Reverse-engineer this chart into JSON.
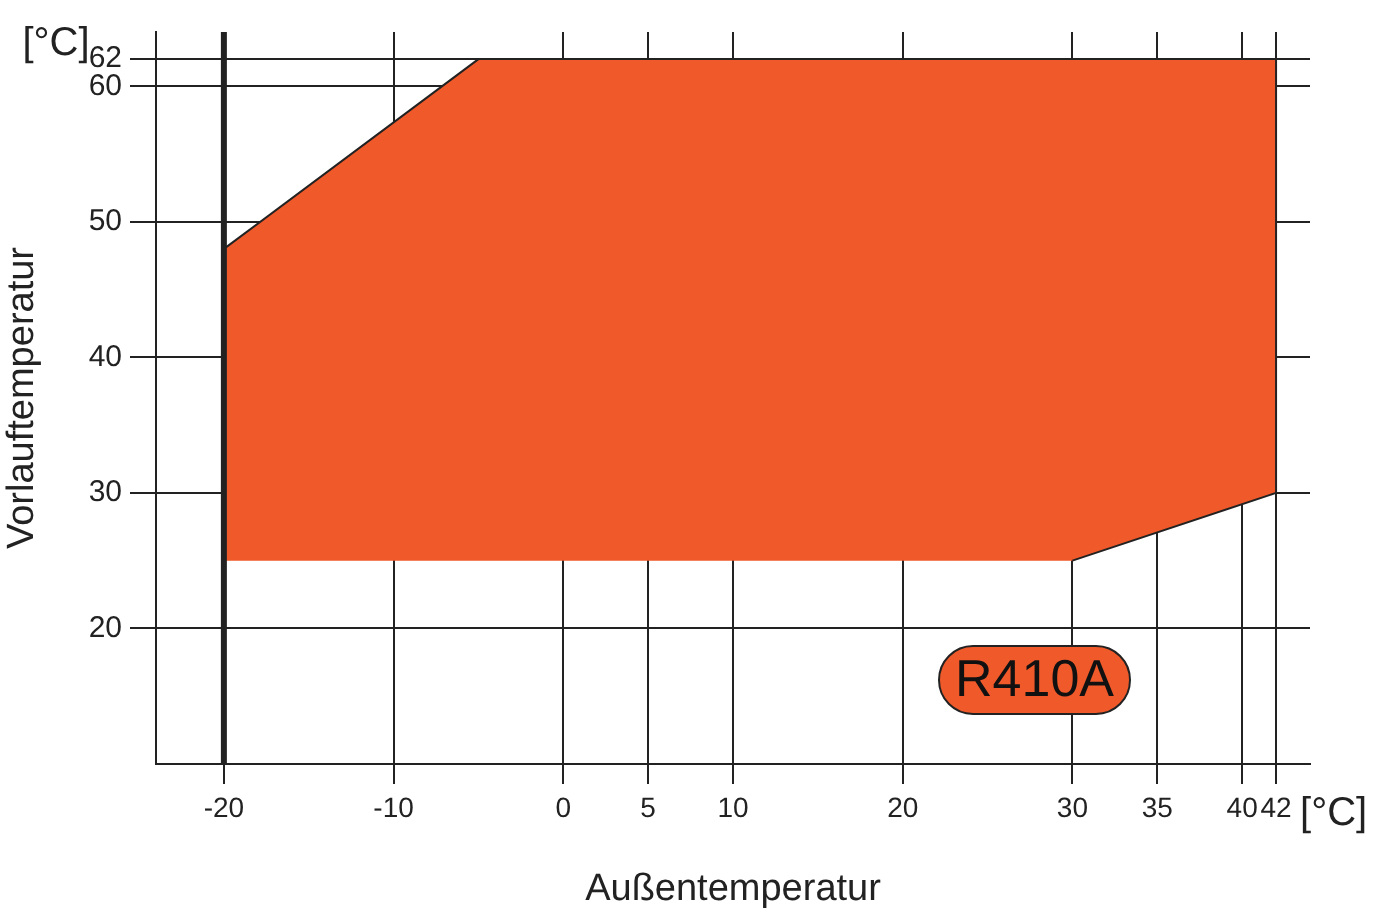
{
  "chart_data": {
    "type": "area",
    "xlabel": "Außentemperatur",
    "ylabel": "Vorlauftemperatur",
    "series": [
      {
        "color": "#f05a2a",
        "x": [
          -20,
          -20,
          -5,
          42,
          42,
          30
        ],
        "values": [
          25,
          48,
          62,
          62,
          30,
          25
        ]
      }
    ],
    "xlim": [
      -24,
      44
    ],
    "xticks": [
      -20,
      -10,
      0,
      5,
      10,
      20,
      30,
      35,
      40,
      42
    ],
    "ylim": [
      10,
      64
    ],
    "yticks": [
      20,
      30,
      40,
      50,
      60,
      62
    ],
    "ref_lines": [
      {
        "axis": "x",
        "value": -20,
        "color": "#222222"
      }
    ],
    "annotations": [
      "[°C]",
      "[°C]",
      "R410A"
    ],
    "grid": true,
    "legend": false
  }
}
